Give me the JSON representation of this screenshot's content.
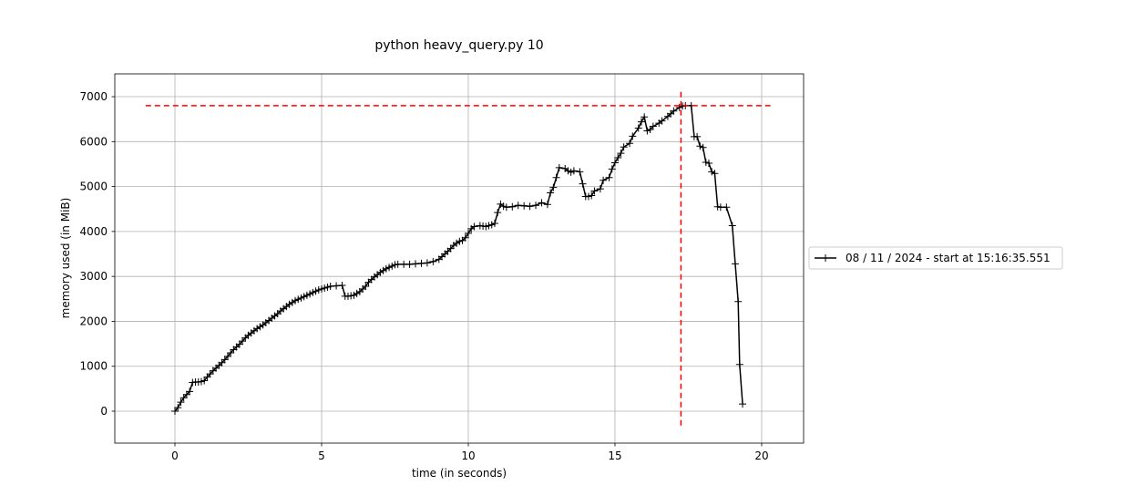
{
  "chart_data": {
    "type": "line",
    "title": "python heavy_query.py 10",
    "x_label": "time (in seconds)",
    "y_label": "memory used (in MiB)",
    "xlim": [
      -2.05,
      21.43
    ],
    "xticks": [
      0,
      5,
      10,
      15,
      20
    ],
    "ylim": [
      -710,
      7508
    ],
    "yticks": [
      0,
      1000,
      2000,
      3000,
      4000,
      5000,
      6000,
      7000
    ],
    "grid": true,
    "legend": "right",
    "marker": "+",
    "max_lines": {
      "x": 17.25,
      "y": 6800,
      "hline_x": [
        -1.0,
        20.3
      ],
      "vline_y": [
        -320,
        7130
      ],
      "color": "#ff0000"
    },
    "series": [
      {
        "name": "08 / 11 / 2024 - start at 15:16:35.551",
        "color": "#000000",
        "x": [
          0,
          0.1,
          0.2,
          0.3,
          0.4,
          0.5,
          0.6,
          0.7,
          0.8,
          0.9,
          1.0,
          1.1,
          1.2,
          1.3,
          1.4,
          1.5,
          1.6,
          1.7,
          1.8,
          1.9,
          2.0,
          2.1,
          2.2,
          2.3,
          2.4,
          2.5,
          2.6,
          2.7,
          2.8,
          2.9,
          3.0,
          3.1,
          3.2,
          3.3,
          3.4,
          3.5,
          3.6,
          3.7,
          3.8,
          3.9,
          4.0,
          4.1,
          4.2,
          4.3,
          4.4,
          4.5,
          4.6,
          4.7,
          4.8,
          4.9,
          5.0,
          5.1,
          5.2,
          5.3,
          5.5,
          5.7,
          5.8,
          5.9,
          6.0,
          6.1,
          6.2,
          6.3,
          6.4,
          6.5,
          6.6,
          6.7,
          6.8,
          6.9,
          7.0,
          7.1,
          7.2,
          7.3,
          7.4,
          7.5,
          7.6,
          7.8,
          8.0,
          8.2,
          8.4,
          8.6,
          8.8,
          9.0,
          9.1,
          9.2,
          9.3,
          9.4,
          9.5,
          9.6,
          9.7,
          9.8,
          9.9,
          10.0,
          10.1,
          10.2,
          10.4,
          10.5,
          10.6,
          10.7,
          10.8,
          10.9,
          11.0,
          11.1,
          11.2,
          11.3,
          11.5,
          11.7,
          11.9,
          12.1,
          12.3,
          12.5,
          12.7,
          12.8,
          12.9,
          13.0,
          13.1,
          13.3,
          13.4,
          13.5,
          13.6,
          13.8,
          13.9,
          14.0,
          14.1,
          14.2,
          14.3,
          14.5,
          14.6,
          14.8,
          14.9,
          15.0,
          15.1,
          15.2,
          15.3,
          15.5,
          15.6,
          15.8,
          15.9,
          16.0,
          16.1,
          16.2,
          16.3,
          16.5,
          16.6,
          16.8,
          16.9,
          17.0,
          17.2,
          17.3,
          17.4,
          17.6,
          17.7,
          17.8,
          17.9,
          18.0,
          18.1,
          18.2,
          18.3,
          18.4,
          18.5,
          18.6,
          18.8,
          19.0,
          19.1,
          19.2,
          19.25,
          19.35
        ],
        "values": [
          0,
          80,
          200,
          300,
          370,
          440,
          640,
          650,
          650,
          660,
          680,
          760,
          830,
          900,
          960,
          1020,
          1080,
          1150,
          1220,
          1300,
          1370,
          1430,
          1490,
          1560,
          1630,
          1690,
          1740,
          1790,
          1840,
          1880,
          1920,
          1970,
          2020,
          2070,
          2120,
          2170,
          2230,
          2280,
          2330,
          2380,
          2420,
          2460,
          2490,
          2520,
          2550,
          2580,
          2610,
          2640,
          2670,
          2700,
          2720,
          2740,
          2760,
          2780,
          2790,
          2800,
          2560,
          2560,
          2570,
          2580,
          2620,
          2660,
          2720,
          2780,
          2870,
          2930,
          2990,
          3040,
          3090,
          3130,
          3170,
          3200,
          3230,
          3260,
          3270,
          3270,
          3270,
          3280,
          3290,
          3300,
          3330,
          3380,
          3440,
          3500,
          3560,
          3620,
          3690,
          3740,
          3780,
          3800,
          3860,
          3960,
          4060,
          4110,
          4130,
          4120,
          4110,
          4130,
          4150,
          4180,
          4420,
          4610,
          4560,
          4540,
          4550,
          4580,
          4570,
          4560,
          4580,
          4640,
          4600,
          4860,
          4980,
          5200,
          5420,
          5400,
          5350,
          5320,
          5350,
          5330,
          5060,
          4780,
          4780,
          4800,
          4900,
          4950,
          5140,
          5200,
          5390,
          5530,
          5640,
          5740,
          5880,
          5960,
          6120,
          6300,
          6440,
          6550,
          6240,
          6270,
          6340,
          6410,
          6460,
          6560,
          6620,
          6680,
          6760,
          6790,
          6800,
          6800,
          6110,
          6110,
          5900,
          5870,
          5540,
          5520,
          5330,
          5290,
          4550,
          4540,
          4540,
          4130,
          3280,
          2440,
          1040,
          160
        ]
      }
    ]
  }
}
